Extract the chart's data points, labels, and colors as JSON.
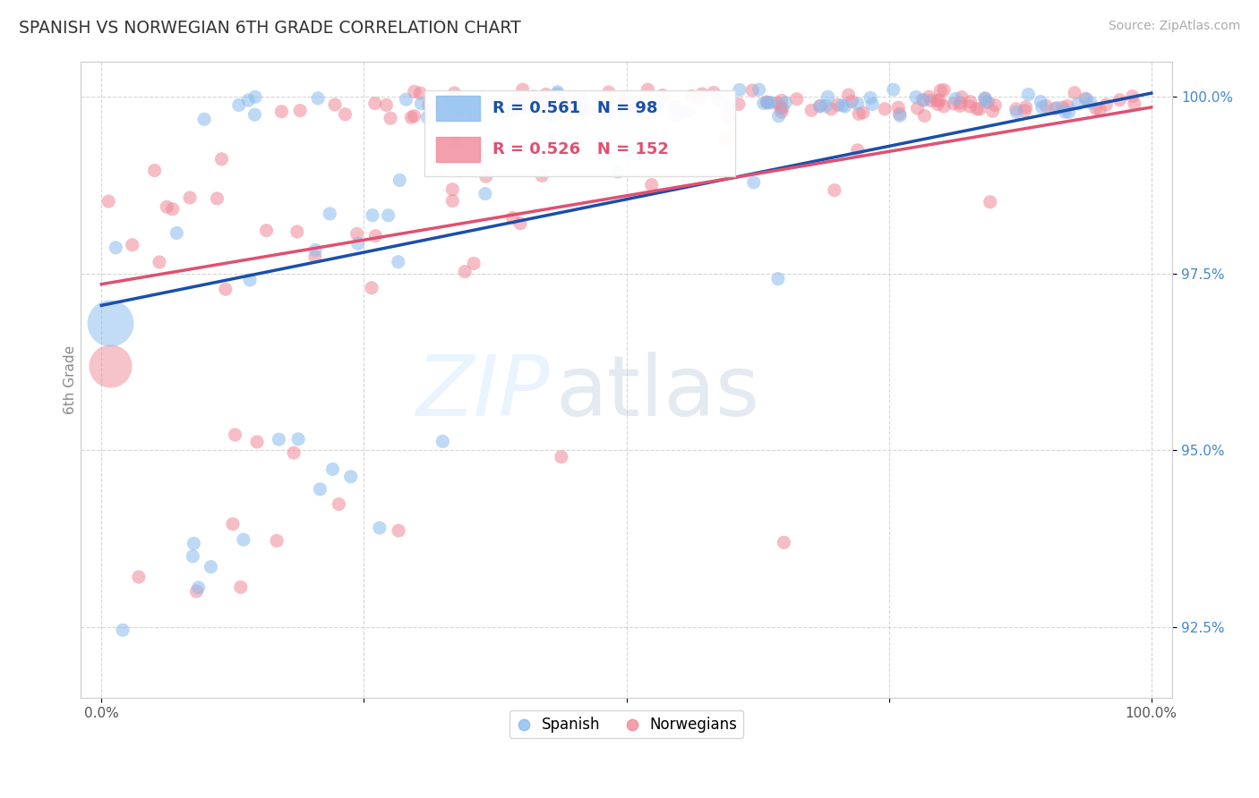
{
  "title": "SPANISH VS NORWEGIAN 6TH GRADE CORRELATION CHART",
  "source_text": "Source: ZipAtlas.com",
  "ylabel": "6th Grade",
  "xlim": [
    -0.02,
    1.02
  ],
  "ylim": [
    0.915,
    1.005
  ],
  "xticks": [
    0.0,
    0.25,
    0.5,
    0.75,
    1.0
  ],
  "xticklabels": [
    "0.0%",
    "",
    "",
    "",
    "100.0%"
  ],
  "ytick_positions": [
    0.925,
    0.95,
    0.975,
    1.0
  ],
  "ytick_labels": [
    "92.5%",
    "95.0%",
    "97.5%",
    "100.0%"
  ],
  "spanish_color": "#88bbee",
  "norwegian_color": "#f08898",
  "spanish_line_color": "#1a4faa",
  "norwegian_line_color": "#e05070",
  "legend_spanish_R": "R = 0.561",
  "legend_spanish_N": "N = 98",
  "legend_norwegian_R": "R = 0.526",
  "legend_norwegian_N": "N = 152",
  "watermark_zip": "ZIP",
  "watermark_atlas": "atlas",
  "background_color": "#ffffff",
  "grid_color": "#cccccc",
  "sp_line_x0": 0.0,
  "sp_line_y0": 0.9705,
  "sp_line_x1": 1.0,
  "sp_line_y1": 1.0005,
  "no_line_x0": 0.0,
  "no_line_y0": 0.9735,
  "no_line_x1": 1.0,
  "no_line_y1": 0.9985
}
